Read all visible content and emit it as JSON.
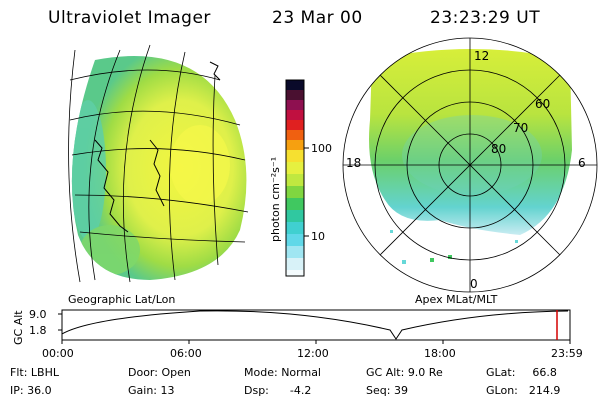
{
  "header": {
    "instrument": "Ultraviolet Imager",
    "date": "23 Mar 00",
    "time": "23:23:29 UT"
  },
  "colorbar": {
    "unit_label": "photon cm⁻²s⁻¹",
    "ticks": [
      "100",
      "10"
    ],
    "scale": "log"
  },
  "geo_panel": {
    "label": "Geographic Lat/Lon"
  },
  "polar_panel": {
    "label": "Apex MLat/MLT",
    "mlt_labels": {
      "top": "12",
      "bottom": "0",
      "left": "18",
      "right": "6"
    },
    "lat_labels": [
      "60",
      "70",
      "80"
    ]
  },
  "altitude_plot": {
    "ylabel": "GC Alt",
    "yticks": [
      "9.0",
      "1.8"
    ],
    "xticks": [
      "00:00",
      "06:00",
      "12:00",
      "18:00",
      "23:59"
    ],
    "current_marker_color": "#d40000"
  },
  "status": {
    "flt_label": "Flt:",
    "flt_value": "LBHL",
    "ip_label": "IP:",
    "ip_value": "36.0",
    "door_label": "Door:",
    "door_value": "Open",
    "gain_label": "Gain:",
    "gain_value": "13",
    "mode_label": "Mode:",
    "mode_value": "Normal",
    "dsp_label": "Dsp:",
    "dsp_value": "-4.2",
    "gcalt_label": "GC Alt:",
    "gcalt_value": "9.0 Re",
    "seq_label": "Seq:",
    "seq_value": "39",
    "glat_label": "GLat:",
    "glat_value": "66.8",
    "glon_label": "GLon:",
    "glon_value": "214.9"
  }
}
